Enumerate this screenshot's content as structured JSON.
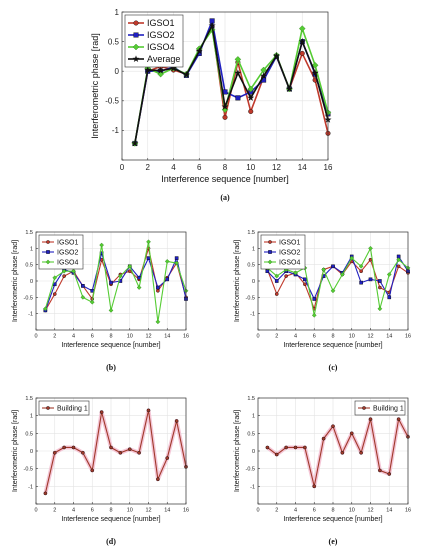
{
  "chart_data": [
    {
      "type": "line",
      "panel_label": "(a)",
      "xlabel": "Interference sequence [number]",
      "ylabel": "Interferometric phase [rad]",
      "xlim": [
        0,
        16
      ],
      "ylim": [
        -1.5,
        1
      ],
      "xticks": [
        0,
        2,
        4,
        6,
        8,
        10,
        12,
        14,
        16
      ],
      "yticks": [
        -1.5,
        -1,
        -0.5,
        0,
        0.5,
        1
      ],
      "ytick_labels": [
        "",
        "-1",
        "-0.5",
        "0",
        "0.5",
        "1"
      ],
      "grid": true,
      "legend": "top-left",
      "x": [
        1,
        2,
        3,
        4,
        5,
        6,
        7,
        8,
        9,
        10,
        11,
        12,
        13,
        14,
        15,
        16
      ],
      "series": [
        {
          "name": "IGSO1",
          "color": "#c0392b",
          "marker": "circle",
          "values": [
            -1.22,
            0.0,
            0.08,
            0.02,
            -0.05,
            0.35,
            0.75,
            -0.78,
            0.15,
            -0.68,
            -0.1,
            0.25,
            -0.3,
            0.3,
            -0.15,
            -1.05
          ]
        },
        {
          "name": "IGSO2",
          "color": "#2020c0",
          "marker": "square",
          "values": [
            -1.22,
            0.0,
            0.0,
            0.07,
            -0.07,
            0.3,
            0.85,
            -0.35,
            -0.45,
            -0.35,
            -0.15,
            0.25,
            -0.3,
            0.5,
            -0.05,
            -0.72
          ]
        },
        {
          "name": "IGSO4",
          "color": "#55cc33",
          "marker": "diamond",
          "values": [
            -1.22,
            0.05,
            -0.05,
            0.05,
            -0.05,
            0.38,
            0.7,
            -0.65,
            0.2,
            -0.3,
            0.02,
            0.27,
            -0.3,
            0.72,
            0.1,
            -0.7
          ]
        },
        {
          "name": "Average",
          "color": "#111111",
          "marker": "star",
          "values": [
            -1.22,
            0.02,
            0.01,
            0.05,
            -0.06,
            0.34,
            0.77,
            -0.6,
            -0.03,
            -0.45,
            -0.08,
            0.26,
            -0.3,
            0.5,
            -0.03,
            -0.82
          ]
        }
      ]
    },
    {
      "type": "line",
      "panel_label": "(b)",
      "xlabel": "Interference sequence [number]",
      "ylabel": "Interferometric phase [rad]",
      "xlim": [
        0,
        16
      ],
      "ylim": [
        -1.5,
        1.5
      ],
      "xticks": [
        0,
        2,
        4,
        6,
        8,
        10,
        12,
        14,
        16
      ],
      "yticks": [
        -1.5,
        -1,
        -0.5,
        0,
        0.5,
        1,
        1.5
      ],
      "ytick_labels": [
        "",
        "-1",
        "-0.5",
        "0",
        "0.5",
        "1",
        "1.5"
      ],
      "grid": true,
      "legend": "top-left",
      "x": [
        1,
        2,
        3,
        4,
        5,
        6,
        7,
        8,
        9,
        10,
        11,
        12,
        13,
        14,
        15,
        16
      ],
      "series": [
        {
          "name": "IGSO1",
          "color": "#c0392b",
          "marker": "circle",
          "values": [
            -0.9,
            -0.4,
            0.15,
            0.3,
            -0.15,
            -0.55,
            0.65,
            -0.1,
            0.2,
            0.3,
            0.05,
            1.0,
            -0.3,
            0.1,
            0.55,
            -0.5
          ]
        },
        {
          "name": "IGSO2",
          "color": "#2020c0",
          "marker": "square",
          "values": [
            -0.9,
            -0.1,
            0.35,
            0.25,
            -0.15,
            -0.3,
            0.85,
            -0.05,
            0.0,
            0.45,
            0.1,
            0.7,
            -0.2,
            0.05,
            0.7,
            -0.55
          ]
        },
        {
          "name": "IGSO4",
          "color": "#55cc33",
          "marker": "diamond",
          "values": [
            -0.85,
            0.1,
            0.3,
            0.3,
            -0.5,
            -0.65,
            1.1,
            -0.9,
            0.15,
            0.45,
            -0.2,
            1.2,
            -1.25,
            0.6,
            0.55,
            -0.3
          ]
        }
      ]
    },
    {
      "type": "line",
      "panel_label": "(c)",
      "xlabel": "Interference sequence [number]",
      "ylabel": "Interferometric phase [rad]",
      "xlim": [
        0,
        16
      ],
      "ylim": [
        -1.5,
        1.5
      ],
      "xticks": [
        0,
        2,
        4,
        6,
        8,
        10,
        12,
        14,
        16
      ],
      "yticks": [
        -1.5,
        -1,
        -0.5,
        0,
        0.5,
        1,
        1.5
      ],
      "ytick_labels": [
        "",
        "-1",
        "-0.5",
        "0",
        "0.5",
        "1",
        "1.5"
      ],
      "grid": true,
      "legend": "top-left",
      "x": [
        1,
        2,
        3,
        4,
        5,
        6,
        7,
        8,
        9,
        10,
        11,
        12,
        13,
        14,
        15,
        16
      ],
      "series": [
        {
          "name": "IGSO1",
          "color": "#c0392b",
          "marker": "circle",
          "values": [
            0.35,
            -0.4,
            0.15,
            0.25,
            -0.1,
            -0.85,
            0.35,
            0.45,
            0.2,
            0.6,
            0.3,
            0.65,
            -0.2,
            -0.35,
            0.45,
            0.25
          ]
        },
        {
          "name": "IGSO2",
          "color": "#2020c0",
          "marker": "square",
          "values": [
            0.3,
            0.0,
            0.3,
            0.2,
            0.05,
            -0.55,
            0.15,
            0.45,
            0.25,
            0.75,
            -0.05,
            0.05,
            0.0,
            -0.5,
            0.75,
            0.3
          ]
        },
        {
          "name": "IGSO4",
          "color": "#55cc33",
          "marker": "diamond",
          "values": [
            0.4,
            0.15,
            0.35,
            0.25,
            0.4,
            -1.05,
            0.35,
            -0.3,
            0.2,
            0.7,
            0.45,
            1.0,
            -0.85,
            0.2,
            0.65,
            0.4
          ]
        }
      ]
    },
    {
      "type": "line",
      "panel_label": "(d)",
      "xlabel": "Interference sequence [number]",
      "ylabel": "Interferometric phase [rad]",
      "xlim": [
        0,
        16
      ],
      "ylim": [
        -1.5,
        1.5
      ],
      "xticks": [
        0,
        2,
        4,
        6,
        8,
        10,
        12,
        14,
        16
      ],
      "yticks": [
        -1.5,
        -1,
        -0.5,
        0,
        0.5,
        1,
        1.5
      ],
      "ytick_labels": [
        "",
        "-1",
        "-0.5",
        "0",
        "0.5",
        "1",
        "1.5"
      ],
      "grid": true,
      "legend": "top-left",
      "x": [
        1,
        2,
        3,
        4,
        5,
        6,
        7,
        8,
        9,
        10,
        11,
        12,
        13,
        14,
        15,
        16
      ],
      "series": [
        {
          "name": "Building 1",
          "color": "#a0392b",
          "marker": "circle",
          "values": [
            -1.2,
            -0.05,
            0.1,
            0.1,
            -0.05,
            -0.55,
            1.1,
            0.1,
            -0.05,
            0.05,
            -0.05,
            1.15,
            -0.8,
            -0.2,
            0.85,
            -0.45
          ]
        }
      ]
    },
    {
      "type": "line",
      "panel_label": "(e)",
      "xlabel": "Interference sequence [number]",
      "ylabel": "Interferometric phase [rad]",
      "xlim": [
        0,
        16
      ],
      "ylim": [
        -1.5,
        1.5
      ],
      "xticks": [
        0,
        2,
        4,
        6,
        8,
        10,
        12,
        14,
        16
      ],
      "yticks": [
        -1.5,
        -1,
        -0.5,
        0,
        0.5,
        1,
        1.5
      ],
      "ytick_labels": [
        "",
        "-1",
        "-0.5",
        "0",
        "0.5",
        "1",
        "1.5"
      ],
      "grid": true,
      "legend": "top-right",
      "x": [
        1,
        2,
        3,
        4,
        5,
        6,
        7,
        8,
        9,
        10,
        11,
        12,
        13,
        14,
        15,
        16
      ],
      "series": [
        {
          "name": "Building 1",
          "color": "#a0392b",
          "marker": "circle",
          "values": [
            0.1,
            -0.1,
            0.1,
            0.1,
            0.1,
            -1.0,
            0.35,
            0.7,
            -0.05,
            0.5,
            -0.05,
            0.9,
            -0.55,
            -0.65,
            0.9,
            0.4
          ]
        }
      ]
    }
  ]
}
